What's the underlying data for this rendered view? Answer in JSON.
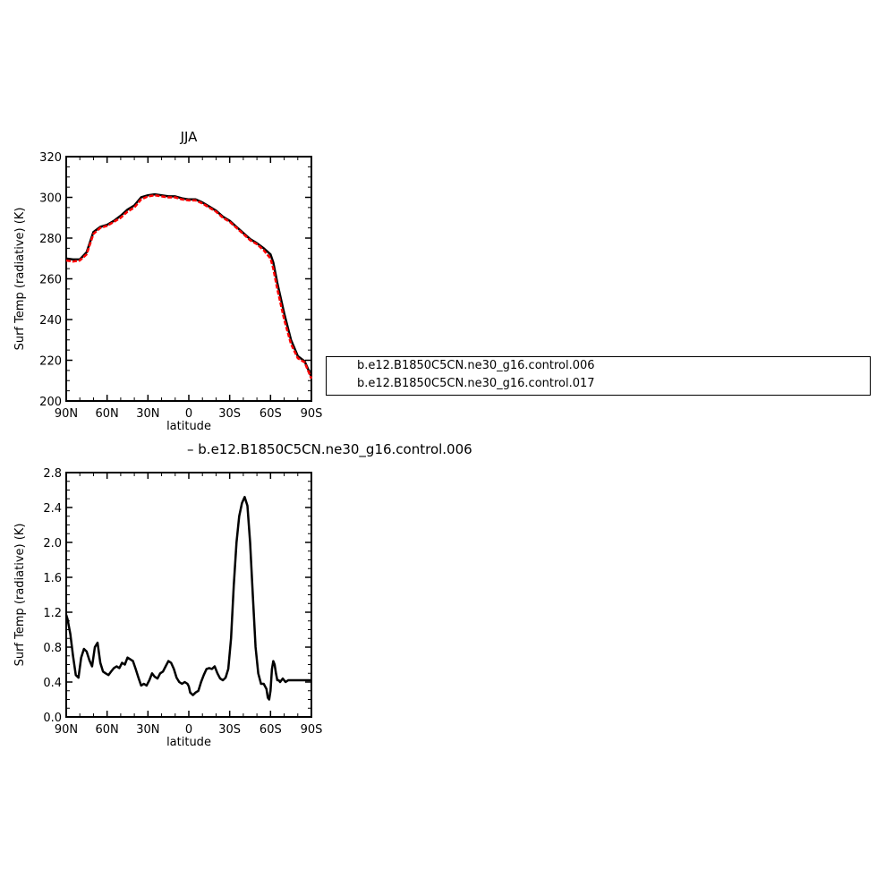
{
  "chart_data": [
    {
      "type": "line",
      "title": "JJA",
      "xlabel": "latitude",
      "ylabel": "Surf Temp (radiative) (K)",
      "xlim": [
        90,
        -90
      ],
      "ylim": [
        200,
        320
      ],
      "xticks": [
        90,
        60,
        30,
        0,
        -30,
        -60,
        -90
      ],
      "xtick_labels": [
        "90N",
        "60N",
        "30N",
        "0",
        "30S",
        "60S",
        "90S"
      ],
      "yticks": [
        200,
        220,
        240,
        260,
        280,
        300,
        320
      ],
      "ytick_labels": [
        "200",
        "220",
        "240",
        "260",
        "280",
        "300",
        "320"
      ],
      "legend": "right",
      "series": [
        {
          "name": "b.e12.B1850C5CN.ne30_g16.control.006",
          "color": "#ff0000",
          "dash": true,
          "x": [
            90,
            85,
            80,
            75,
            70,
            65,
            60,
            55,
            50,
            45,
            40,
            35,
            30,
            25,
            20,
            15,
            10,
            5,
            0,
            -5,
            -10,
            -15,
            -20,
            -25,
            -30,
            -35,
            -40,
            -45,
            -50,
            -55,
            -60,
            -62,
            -65,
            -70,
            -75,
            -80,
            -85,
            -90
          ],
          "y": [
            269,
            268.5,
            269,
            272,
            282,
            285,
            286,
            288,
            290,
            293,
            295,
            299,
            300.5,
            301,
            300.5,
            300,
            300,
            299,
            298.5,
            298.5,
            297,
            295,
            293,
            290,
            288,
            285,
            282,
            279,
            277,
            274,
            270,
            265,
            255,
            240,
            228,
            221,
            219,
            211
          ]
        },
        {
          "name": "b.e12.B1850C5CN.ne30_g16.control.017",
          "color": "#000000",
          "dash": false,
          "x": [
            90,
            85,
            80,
            75,
            70,
            65,
            60,
            55,
            50,
            45,
            40,
            35,
            30,
            25,
            20,
            15,
            10,
            5,
            0,
            -5,
            -10,
            -15,
            -20,
            -25,
            -30,
            -35,
            -40,
            -45,
            -50,
            -55,
            -60,
            -62,
            -65,
            -70,
            -75,
            -80,
            -85,
            -90
          ],
          "y": [
            270,
            269.5,
            269.5,
            273,
            283,
            285.5,
            286.5,
            288.5,
            291,
            294,
            296,
            300,
            301,
            301.5,
            301,
            300.5,
            300.5,
            299.5,
            299,
            299,
            297.5,
            295.5,
            293.5,
            290.5,
            288.5,
            285.5,
            282.5,
            279.5,
            277.5,
            275,
            272,
            268,
            258,
            243,
            230,
            222,
            219.5,
            212
          ]
        }
      ]
    },
    {
      "type": "line",
      "xlabel": "latitude",
      "ylabel": "Surf Temp (radiative) (K)",
      "xlim": [
        90,
        -90
      ],
      "ylim": [
        0.0,
        2.8
      ],
      "xticks": [
        90,
        60,
        30,
        0,
        -30,
        -60,
        -90
      ],
      "xtick_labels": [
        "90N",
        "60N",
        "30N",
        "0",
        "30S",
        "60S",
        "90S"
      ],
      "yticks": [
        0.0,
        0.4,
        0.8,
        1.2,
        1.6,
        2.0,
        2.4,
        2.8
      ],
      "ytick_labels": [
        "0.0",
        "0.4",
        "0.8",
        "1.2",
        "1.6",
        "2.0",
        "2.4",
        "2.8"
      ],
      "series": [
        {
          "name": "b.e12.B1850C5CN.ne30_g16.control.006",
          "color": "#000000",
          "dash": false,
          "x": [
            90,
            89,
            87,
            85,
            83,
            81,
            79,
            77,
            75,
            73,
            71,
            69,
            67,
            65,
            63,
            61,
            59,
            57,
            55,
            53,
            51,
            49,
            47,
            45,
            43,
            41,
            39,
            37,
            35,
            33,
            31,
            29,
            27,
            25,
            23,
            21,
            19,
            17,
            15,
            13,
            11,
            9,
            7,
            5,
            3,
            1,
            0,
            -1,
            -3,
            -5,
            -7,
            -9,
            -11,
            -13,
            -15,
            -17,
            -19,
            -21,
            -23,
            -25,
            -27,
            -29,
            -31,
            -33,
            -35,
            -37,
            -39,
            -41,
            -43,
            -45,
            -47,
            -49,
            -51,
            -53,
            -55,
            -57,
            -58,
            -59,
            -60,
            -61,
            -62,
            -63,
            -64,
            -65,
            -66,
            -67,
            -68,
            -69,
            -71,
            -73,
            -75,
            -77,
            -79,
            -81,
            -83,
            -85,
            -87,
            -89,
            -90
          ],
          "y": [
            1.17,
            1.12,
            0.95,
            0.7,
            0.48,
            0.45,
            0.68,
            0.78,
            0.75,
            0.65,
            0.58,
            0.8,
            0.85,
            0.62,
            0.52,
            0.5,
            0.48,
            0.52,
            0.56,
            0.58,
            0.56,
            0.62,
            0.6,
            0.68,
            0.66,
            0.64,
            0.55,
            0.45,
            0.36,
            0.38,
            0.36,
            0.42,
            0.5,
            0.46,
            0.44,
            0.5,
            0.52,
            0.58,
            0.64,
            0.62,
            0.55,
            0.45,
            0.4,
            0.38,
            0.4,
            0.38,
            0.35,
            0.28,
            0.25,
            0.28,
            0.3,
            0.4,
            0.48,
            0.55,
            0.56,
            0.55,
            0.58,
            0.5,
            0.44,
            0.42,
            0.45,
            0.55,
            0.9,
            1.5,
            2.0,
            2.3,
            2.45,
            2.52,
            2.42,
            2.0,
            1.4,
            0.8,
            0.5,
            0.38,
            0.38,
            0.32,
            0.22,
            0.2,
            0.3,
            0.55,
            0.64,
            0.6,
            0.5,
            0.42,
            0.42,
            0.4,
            0.42,
            0.44,
            0.4,
            0.42,
            0.42,
            0.42,
            0.42,
            0.42,
            0.42,
            0.42,
            0.42,
            0.42,
            0.42
          ]
        }
      ]
    }
  ]
}
